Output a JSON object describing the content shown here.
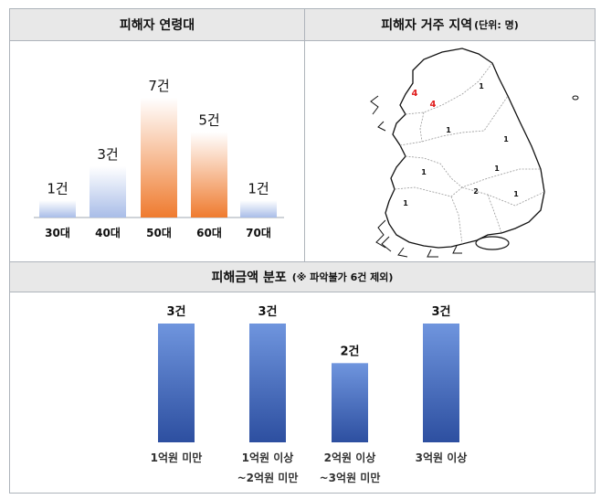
{
  "panels": {
    "age": {
      "title": "피해자 연령대"
    },
    "region": {
      "title": "피해자 거주 지역",
      "title_unit": "(단위: 명)"
    },
    "amount": {
      "title": "피해금액 분포",
      "title_note": "(※ 파악불가 6건 제외)"
    }
  },
  "chart_data": [
    {
      "type": "bar",
      "title": "피해자 연령대",
      "categories": [
        "30대",
        "40대",
        "50대",
        "60대",
        "70대"
      ],
      "values": [
        1,
        3,
        7,
        5,
        1
      ],
      "value_labels": [
        "1건",
        "3건",
        "7건",
        "5건",
        "1건"
      ],
      "colors": [
        "#a9bde8",
        "#a9bde8",
        "#ef7b2f",
        "#ef7b2f",
        "#a9bde8"
      ],
      "ylim": [
        0,
        7
      ]
    },
    {
      "type": "bar",
      "title": "피해금액 분포",
      "categories": [
        "1억원 미만",
        "1억원 이상\n~2억원 미만",
        "2억원 이상\n~3억원 미만",
        "3억원 이상"
      ],
      "values": [
        3,
        3,
        2,
        3
      ],
      "value_labels": [
        "3건",
        "3건",
        "2건",
        "3건"
      ],
      "colors": [
        "#4a76c9",
        "#4a76c9",
        "#4a76c9",
        "#4a76c9"
      ],
      "ylim": [
        0,
        3
      ]
    }
  ],
  "map": {
    "labels": [
      {
        "text": "4",
        "color": "#e02020"
      },
      {
        "text": "4",
        "color": "#e02020"
      },
      {
        "text": "1",
        "color": "#111111"
      },
      {
        "text": "1",
        "color": "#111111"
      },
      {
        "text": "1",
        "color": "#111111"
      },
      {
        "text": "1",
        "color": "#111111"
      },
      {
        "text": "1",
        "color": "#111111"
      },
      {
        "text": "2",
        "color": "#111111"
      },
      {
        "text": "1",
        "color": "#111111"
      },
      {
        "text": "1",
        "color": "#111111"
      }
    ]
  }
}
